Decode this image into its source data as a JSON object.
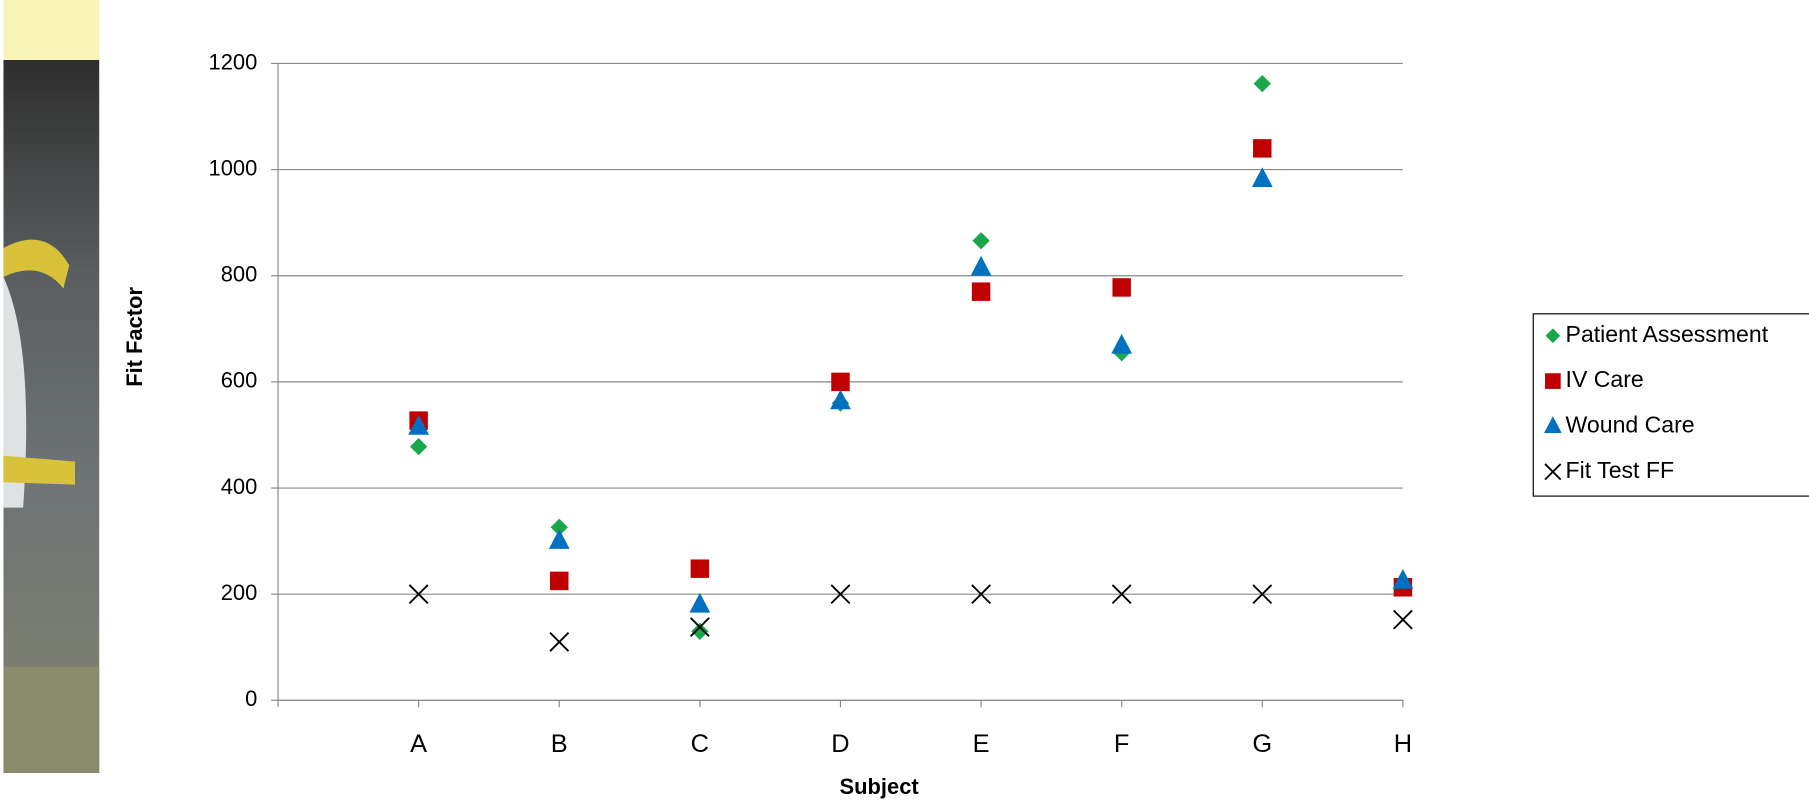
{
  "chart_data": {
    "type": "scatter",
    "x_label": "Subject",
    "y_label": "Fit Factor",
    "categories": [
      "A",
      "B",
      "C",
      "D",
      "E",
      "F",
      "G",
      "H"
    ],
    "series": [
      {
        "name": "Patient Assessment",
        "color": "#1aa64b",
        "marker": "diamond",
        "values": [
          478,
          326,
          130,
          560,
          866,
          655,
          1162,
          215
        ]
      },
      {
        "name": "IV Care",
        "color": "#c00000",
        "marker": "square",
        "values": [
          527,
          225,
          248,
          600,
          770,
          778,
          1040,
          213
        ]
      },
      {
        "name": "Wound Care",
        "color": "#0070c0",
        "marker": "triangle",
        "values": [
          515,
          300,
          180,
          563,
          815,
          668,
          982,
          225
        ]
      },
      {
        "name": "Fit Test FF",
        "color": "#000000",
        "marker": "cross",
        "values": [
          200,
          110,
          138,
          200,
          200,
          200,
          200,
          152
        ]
      }
    ],
    "ylim": [
      0,
      1200
    ],
    "yticks": [
      0,
      200,
      400,
      600,
      800,
      1000,
      1200
    ],
    "grid": true,
    "legend": "right"
  }
}
